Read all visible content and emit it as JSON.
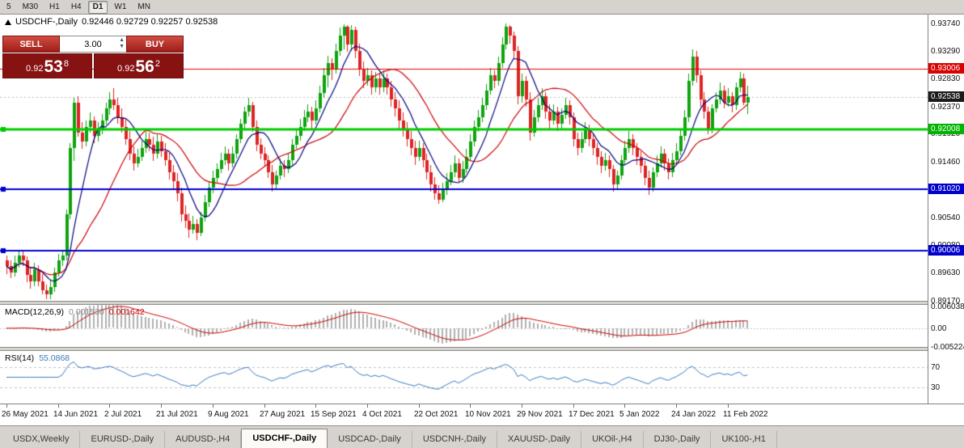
{
  "toolbar": {
    "timeframe_buttons": [
      "5",
      "M30",
      "H1",
      "H4",
      "D1",
      "W1",
      "MN"
    ],
    "active_timeframe": "D1"
  },
  "chart": {
    "symbol_period": "USDCHF-,Daily",
    "ohlc": "0.92446 0.92729 0.92257 0.92538"
  },
  "trade_panel": {
    "sell_label": "SELL",
    "buy_label": "BUY",
    "lot_size": "3.00",
    "sell_price": {
      "prefix": "0.92",
      "big": "53",
      "sup": "8"
    },
    "buy_price": {
      "prefix": "0.92",
      "big": "56",
      "sup": "2"
    }
  },
  "price_axis": {
    "labels": [
      "0.93740",
      "0.93290",
      "0.92830",
      "0.92370",
      "0.91920",
      "0.91460",
      "0.91000",
      "0.90540",
      "0.90080",
      "0.89630",
      "0.89170"
    ],
    "badges": [
      {
        "text": "0.93006",
        "price": 0.93006,
        "color": "#d80000"
      },
      {
        "text": "0.92538",
        "price": 0.92538,
        "color": "#1a1a1a"
      },
      {
        "text": "0.92008",
        "price": 0.92008,
        "color": "#00b400"
      },
      {
        "text": "0.91020",
        "price": 0.9102,
        "color": "#0000cc"
      },
      {
        "text": "0.90006",
        "price": 0.90006,
        "color": "#0000cc"
      }
    ]
  },
  "objects": {
    "hlines": [
      {
        "price": 0.93006,
        "color": "#e00000",
        "width": 1,
        "handles": false
      },
      {
        "price": 0.92008,
        "color": "#00cc00",
        "width": 3,
        "handles": true
      },
      {
        "price": 0.9102,
        "color": "#0000d0",
        "width": 2,
        "handles": true
      },
      {
        "price": 0.90006,
        "color": "#0000d0",
        "width": 2,
        "handles": true
      }
    ]
  },
  "indicators": {
    "macd": {
      "header": "MACD(12,26,9)",
      "value_main": "0.001530",
      "value_signal": "0.001642",
      "params": {
        "fast": 12,
        "slow": 26,
        "signal": 9
      },
      "range": {
        "max": 0.006038,
        "min": -0.005224
      },
      "axis_labels": [
        {
          "text": "0.006038",
          "value": 0.006038
        },
        {
          "text": "0.00",
          "value": 0
        },
        {
          "text": "-0.005224",
          "value": -0.005224
        }
      ],
      "colors": {
        "histogram": "#b0b0b0",
        "signal": "#cc0000",
        "zero_line": "#c8c8c8"
      }
    },
    "rsi": {
      "header": "RSI(14)",
      "value": "55.0868",
      "period": 14,
      "levels": [
        {
          "text": "70",
          "value": 70
        },
        {
          "text": "30",
          "value": 30
        }
      ],
      "colors": {
        "line": "#3a78c0",
        "level_line": "#c0c0c0"
      }
    }
  },
  "time_axis": {
    "labels": [
      {
        "index": 0,
        "text": "26 May 2021"
      },
      {
        "index": 13,
        "text": "14 Jun 2021"
      },
      {
        "index": 26,
        "text": "2 Jul 2021"
      },
      {
        "index": 39,
        "text": "21 Jul 2021"
      },
      {
        "index": 52,
        "text": "9 Aug 2021"
      },
      {
        "index": 65,
        "text": "27 Aug 2021"
      },
      {
        "index": 78,
        "text": "15 Sep 2021"
      },
      {
        "index": 91,
        "text": "4 Oct 2021"
      },
      {
        "index": 104,
        "text": "22 Oct 2021"
      },
      {
        "index": 117,
        "text": "10 Nov 2021"
      },
      {
        "index": 130,
        "text": "29 Nov 2021"
      },
      {
        "index": 143,
        "text": "17 Dec 2021"
      },
      {
        "index": 156,
        "text": "5 Jan 2022"
      },
      {
        "index": 169,
        "text": "24 Jan 2022"
      },
      {
        "index": 182,
        "text": "11 Feb 2022"
      }
    ]
  },
  "tabs": [
    {
      "label": "USDX,Weekly",
      "active": false
    },
    {
      "label": "EURUSD-,Daily",
      "active": false
    },
    {
      "label": "AUDUSD-,H4",
      "active": false
    },
    {
      "label": "USDCHF-,Daily",
      "active": true
    },
    {
      "label": "USDCAD-,Daily",
      "active": false
    },
    {
      "label": "USDCNH-,Daily",
      "active": false
    },
    {
      "label": "XAUUSD-,Daily",
      "active": false
    },
    {
      "label": "UKOil-,H4",
      "active": false
    },
    {
      "label": "DJ30-,Daily",
      "active": false
    },
    {
      "label": "UK100-,H1",
      "active": false
    }
  ],
  "chart_data": {
    "type": "candlestick",
    "symbol": "USDCHF-",
    "timeframe": "Daily",
    "visible_price_range": {
      "top": 0.939,
      "bottom": 0.8915
    },
    "colors": {
      "bull": "#0fa30f",
      "bear": "#dd2424",
      "ma_fast": "#000080",
      "ma_slow": "#cc0000",
      "bid_line": "#bdbdbd"
    },
    "overlays": {
      "ma_fast_period": 8,
      "ma_slow_period": 20
    },
    "current_bid": 0.92538,
    "candles": [
      [
        0.8985,
        0.8993,
        0.8962,
        0.8975
      ],
      [
        0.8975,
        0.8984,
        0.8955,
        0.8965
      ],
      [
        0.8965,
        0.8992,
        0.8958,
        0.898
      ],
      [
        0.898,
        0.9002,
        0.8972,
        0.8992
      ],
      [
        0.8992,
        0.8999,
        0.8975,
        0.8985
      ],
      [
        0.8985,
        0.8991,
        0.8948,
        0.896
      ],
      [
        0.896,
        0.8972,
        0.8938,
        0.895
      ],
      [
        0.895,
        0.8981,
        0.8942,
        0.897
      ],
      [
        0.897,
        0.8977,
        0.8942,
        0.895
      ],
      [
        0.895,
        0.8962,
        0.8928,
        0.8935
      ],
      [
        0.8935,
        0.8945,
        0.892,
        0.8928
      ],
      [
        0.8928,
        0.8952,
        0.8921,
        0.894
      ],
      [
        0.894,
        0.8972,
        0.8932,
        0.8965
      ],
      [
        0.8965,
        0.8995,
        0.8958,
        0.8985
      ],
      [
        0.8985,
        0.9,
        0.8975,
        0.8992
      ],
      [
        0.8992,
        0.9068,
        0.8984,
        0.906
      ],
      [
        0.906,
        0.9178,
        0.9052,
        0.917
      ],
      [
        0.917,
        0.9252,
        0.9148,
        0.9245
      ],
      [
        0.9245,
        0.9255,
        0.9188,
        0.9195
      ],
      [
        0.9195,
        0.9212,
        0.9168,
        0.918
      ],
      [
        0.918,
        0.9215,
        0.9172,
        0.9205
      ],
      [
        0.9205,
        0.9228,
        0.9195,
        0.9215
      ],
      [
        0.9215,
        0.9222,
        0.9178,
        0.919
      ],
      [
        0.919,
        0.9212,
        0.918,
        0.92
      ],
      [
        0.92,
        0.9226,
        0.9192,
        0.9215
      ],
      [
        0.9215,
        0.9245,
        0.9208,
        0.9235
      ],
      [
        0.9235,
        0.9262,
        0.9225,
        0.925
      ],
      [
        0.925,
        0.9268,
        0.9232,
        0.924
      ],
      [
        0.924,
        0.9252,
        0.921,
        0.922
      ],
      [
        0.922,
        0.9235,
        0.9195,
        0.9205
      ],
      [
        0.9205,
        0.9218,
        0.9175,
        0.9185
      ],
      [
        0.9185,
        0.9198,
        0.915,
        0.916
      ],
      [
        0.916,
        0.9172,
        0.9132,
        0.9145
      ],
      [
        0.9145,
        0.9168,
        0.9138,
        0.9155
      ],
      [
        0.9155,
        0.9182,
        0.9148,
        0.917
      ],
      [
        0.917,
        0.9196,
        0.9162,
        0.9185
      ],
      [
        0.9185,
        0.9195,
        0.9165,
        0.9175
      ],
      [
        0.9175,
        0.9188,
        0.9148,
        0.916
      ],
      [
        0.916,
        0.9192,
        0.9152,
        0.918
      ],
      [
        0.918,
        0.919,
        0.9155,
        0.9165
      ],
      [
        0.9165,
        0.9178,
        0.914,
        0.915
      ],
      [
        0.915,
        0.9162,
        0.9118,
        0.913
      ],
      [
        0.913,
        0.9142,
        0.9102,
        0.9115
      ],
      [
        0.9115,
        0.9128,
        0.9082,
        0.9095
      ],
      [
        0.9095,
        0.9105,
        0.9048,
        0.906
      ],
      [
        0.906,
        0.9075,
        0.9038,
        0.905
      ],
      [
        0.905,
        0.9062,
        0.9022,
        0.9035
      ],
      [
        0.9035,
        0.9058,
        0.9028,
        0.9045
      ],
      [
        0.9045,
        0.9052,
        0.9018,
        0.903
      ],
      [
        0.903,
        0.9065,
        0.9025,
        0.9055
      ],
      [
        0.9055,
        0.9092,
        0.9048,
        0.908
      ],
      [
        0.908,
        0.9115,
        0.9072,
        0.9105
      ],
      [
        0.9105,
        0.9132,
        0.9095,
        0.912
      ],
      [
        0.912,
        0.9145,
        0.9112,
        0.9135
      ],
      [
        0.9135,
        0.9162,
        0.9128,
        0.915
      ],
      [
        0.915,
        0.9172,
        0.9142,
        0.916
      ],
      [
        0.916,
        0.9168,
        0.9132,
        0.9145
      ],
      [
        0.9145,
        0.9172,
        0.9138,
        0.916
      ],
      [
        0.916,
        0.9192,
        0.9152,
        0.9185
      ],
      [
        0.9185,
        0.9218,
        0.9178,
        0.921
      ],
      [
        0.921,
        0.9238,
        0.9202,
        0.923
      ],
      [
        0.923,
        0.9252,
        0.9222,
        0.924
      ],
      [
        0.924,
        0.9246,
        0.9196,
        0.9205
      ],
      [
        0.9205,
        0.9215,
        0.9165,
        0.9175
      ],
      [
        0.9175,
        0.9186,
        0.9151,
        0.916
      ],
      [
        0.916,
        0.9171,
        0.9141,
        0.915
      ],
      [
        0.915,
        0.9158,
        0.912,
        0.913
      ],
      [
        0.913,
        0.9142,
        0.9098,
        0.911
      ],
      [
        0.911,
        0.9132,
        0.9102,
        0.9125
      ],
      [
        0.9125,
        0.9152,
        0.9118,
        0.914
      ],
      [
        0.914,
        0.915,
        0.9122,
        0.9135
      ],
      [
        0.9135,
        0.9162,
        0.9128,
        0.915
      ],
      [
        0.915,
        0.9185,
        0.9142,
        0.9175
      ],
      [
        0.9175,
        0.9202,
        0.9168,
        0.919
      ],
      [
        0.919,
        0.9218,
        0.9182,
        0.9205
      ],
      [
        0.9205,
        0.9232,
        0.9198,
        0.922
      ],
      [
        0.922,
        0.9242,
        0.9212,
        0.923
      ],
      [
        0.923,
        0.9238,
        0.9202,
        0.9215
      ],
      [
        0.9215,
        0.9248,
        0.9208,
        0.9235
      ],
      [
        0.9235,
        0.9272,
        0.9228,
        0.926
      ],
      [
        0.926,
        0.9302,
        0.9252,
        0.929
      ],
      [
        0.929,
        0.9322,
        0.927,
        0.931
      ],
      [
        0.931,
        0.9318,
        0.9282,
        0.93
      ],
      [
        0.93,
        0.9342,
        0.9292,
        0.933
      ],
      [
        0.933,
        0.9368,
        0.9322,
        0.9355
      ],
      [
        0.9355,
        0.9374,
        0.9332,
        0.937
      ],
      [
        0.937,
        0.9373,
        0.9328,
        0.934
      ],
      [
        0.934,
        0.9372,
        0.933,
        0.9365
      ],
      [
        0.9365,
        0.937,
        0.9318,
        0.933
      ],
      [
        0.933,
        0.9342,
        0.9288,
        0.93
      ],
      [
        0.93,
        0.9312,
        0.9268,
        0.928
      ],
      [
        0.928,
        0.9302,
        0.9272,
        0.929
      ],
      [
        0.929,
        0.9298,
        0.9258,
        0.927
      ],
      [
        0.927,
        0.9295,
        0.9262,
        0.9285
      ],
      [
        0.9285,
        0.9292,
        0.9258,
        0.927
      ],
      [
        0.927,
        0.9298,
        0.9262,
        0.9285
      ],
      [
        0.9285,
        0.9292,
        0.9258,
        0.927
      ],
      [
        0.927,
        0.928,
        0.9238,
        0.925
      ],
      [
        0.925,
        0.9262,
        0.9222,
        0.9235
      ],
      [
        0.9235,
        0.9248,
        0.9202,
        0.9215
      ],
      [
        0.9215,
        0.9228,
        0.9188,
        0.92
      ],
      [
        0.92,
        0.9212,
        0.9172,
        0.9185
      ],
      [
        0.9185,
        0.9198,
        0.9158,
        0.917
      ],
      [
        0.917,
        0.9182,
        0.9142,
        0.9155
      ],
      [
        0.9155,
        0.9182,
        0.9148,
        0.917
      ],
      [
        0.917,
        0.9178,
        0.9138,
        0.915
      ],
      [
        0.915,
        0.916,
        0.9118,
        0.913
      ],
      [
        0.913,
        0.9142,
        0.9098,
        0.911
      ],
      [
        0.911,
        0.9122,
        0.9085,
        0.9095
      ],
      [
        0.9095,
        0.9108,
        0.9078,
        0.9085
      ],
      [
        0.9085,
        0.9112,
        0.908,
        0.91
      ],
      [
        0.91,
        0.9128,
        0.9092,
        0.9115
      ],
      [
        0.9115,
        0.9142,
        0.9108,
        0.913
      ],
      [
        0.913,
        0.9158,
        0.9122,
        0.9145
      ],
      [
        0.9145,
        0.9152,
        0.9112,
        0.912
      ],
      [
        0.912,
        0.9148,
        0.9112,
        0.9135
      ],
      [
        0.9135,
        0.9168,
        0.9128,
        0.9155
      ],
      [
        0.9155,
        0.9192,
        0.9148,
        0.918
      ],
      [
        0.918,
        0.9215,
        0.9172,
        0.9205
      ],
      [
        0.9205,
        0.9232,
        0.9196,
        0.922
      ],
      [
        0.922,
        0.9252,
        0.9212,
        0.924
      ],
      [
        0.924,
        0.9275,
        0.9232,
        0.9265
      ],
      [
        0.9265,
        0.9302,
        0.9258,
        0.929
      ],
      [
        0.929,
        0.9298,
        0.9268,
        0.928
      ],
      [
        0.928,
        0.932,
        0.9272,
        0.931
      ],
      [
        0.931,
        0.9352,
        0.9302,
        0.934
      ],
      [
        0.934,
        0.9375,
        0.9332,
        0.937
      ],
      [
        0.937,
        0.9373,
        0.9342,
        0.9355
      ],
      [
        0.9355,
        0.9362,
        0.9318,
        0.933
      ],
      [
        0.933,
        0.9338,
        0.9242,
        0.9255
      ],
      [
        0.9255,
        0.9292,
        0.9245,
        0.928
      ],
      [
        0.928,
        0.9288,
        0.9238,
        0.925
      ],
      [
        0.925,
        0.9262,
        0.9182,
        0.9195
      ],
      [
        0.9195,
        0.9232,
        0.9188,
        0.922
      ],
      [
        0.922,
        0.9252,
        0.9212,
        0.924
      ],
      [
        0.924,
        0.9268,
        0.9232,
        0.9255
      ],
      [
        0.9255,
        0.9262,
        0.9218,
        0.923
      ],
      [
        0.923,
        0.9242,
        0.9202,
        0.9215
      ],
      [
        0.9215,
        0.9242,
        0.9208,
        0.923
      ],
      [
        0.923,
        0.9238,
        0.9198,
        0.921
      ],
      [
        0.921,
        0.9235,
        0.9202,
        0.9225
      ],
      [
        0.9225,
        0.9252,
        0.9218,
        0.924
      ],
      [
        0.924,
        0.9248,
        0.9208,
        0.922
      ],
      [
        0.922,
        0.9228,
        0.9172,
        0.9185
      ],
      [
        0.9185,
        0.9195,
        0.9158,
        0.917
      ],
      [
        0.917,
        0.9196,
        0.9162,
        0.9185
      ],
      [
        0.9185,
        0.9212,
        0.9178,
        0.92
      ],
      [
        0.92,
        0.9208,
        0.9172,
        0.9185
      ],
      [
        0.9185,
        0.9192,
        0.9158,
        0.917
      ],
      [
        0.917,
        0.9178,
        0.9142,
        0.9155
      ],
      [
        0.9155,
        0.9165,
        0.9128,
        0.914
      ],
      [
        0.914,
        0.9162,
        0.9132,
        0.915
      ],
      [
        0.915,
        0.9158,
        0.9122,
        0.9135
      ],
      [
        0.9135,
        0.9142,
        0.9098,
        0.911
      ],
      [
        0.911,
        0.9132,
        0.9102,
        0.9125
      ],
      [
        0.9125,
        0.9158,
        0.9118,
        0.915
      ],
      [
        0.915,
        0.9182,
        0.9142,
        0.917
      ],
      [
        0.917,
        0.9198,
        0.9162,
        0.9185
      ],
      [
        0.9185,
        0.9192,
        0.9158,
        0.917
      ],
      [
        0.917,
        0.9178,
        0.9142,
        0.9155
      ],
      [
        0.9155,
        0.9165,
        0.9128,
        0.914
      ],
      [
        0.914,
        0.9148,
        0.9108,
        0.912
      ],
      [
        0.912,
        0.9132,
        0.9092,
        0.9105
      ],
      [
        0.9105,
        0.9138,
        0.9098,
        0.913
      ],
      [
        0.913,
        0.9158,
        0.9122,
        0.9145
      ],
      [
        0.9145,
        0.9172,
        0.9138,
        0.916
      ],
      [
        0.916,
        0.9168,
        0.9132,
        0.9145
      ],
      [
        0.9145,
        0.9152,
        0.9118,
        0.913
      ],
      [
        0.913,
        0.9162,
        0.9122,
        0.915
      ],
      [
        0.915,
        0.9178,
        0.9142,
        0.9165
      ],
      [
        0.9165,
        0.9202,
        0.9158,
        0.919
      ],
      [
        0.919,
        0.9232,
        0.9182,
        0.922
      ],
      [
        0.922,
        0.9292,
        0.9212,
        0.928
      ],
      [
        0.928,
        0.9332,
        0.9272,
        0.932
      ],
      [
        0.932,
        0.933,
        0.9278,
        0.929
      ],
      [
        0.929,
        0.9298,
        0.9238,
        0.925
      ],
      [
        0.925,
        0.9262,
        0.9218,
        0.923
      ],
      [
        0.923,
        0.9238,
        0.9192,
        0.92
      ],
      [
        0.92,
        0.9242,
        0.9194,
        0.9235
      ],
      [
        0.9235,
        0.9262,
        0.9228,
        0.925
      ],
      [
        0.925,
        0.9278,
        0.9242,
        0.9265
      ],
      [
        0.9265,
        0.9272,
        0.9235,
        0.9245
      ],
      [
        0.9245,
        0.9268,
        0.9238,
        0.9255
      ],
      [
        0.9255,
        0.9262,
        0.9228,
        0.924
      ],
      [
        0.924,
        0.9278,
        0.9232,
        0.927
      ],
      [
        0.927,
        0.9295,
        0.9262,
        0.9285
      ],
      [
        0.9285,
        0.9292,
        0.924,
        0.9245
      ],
      [
        0.92446,
        0.92729,
        0.92257,
        0.92538
      ]
    ]
  }
}
